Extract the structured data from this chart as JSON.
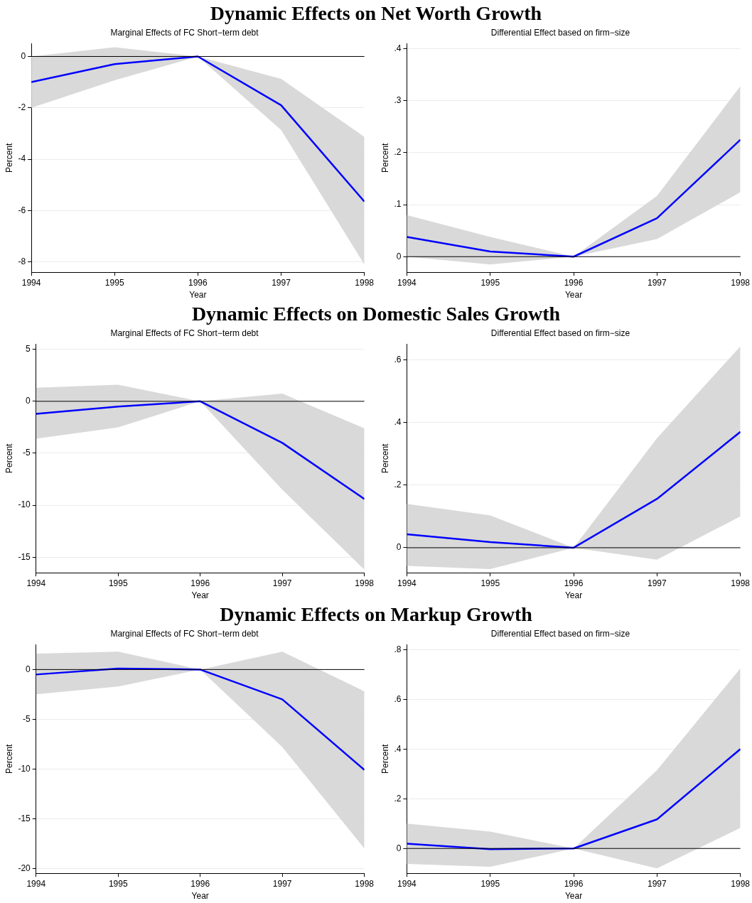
{
  "chart_data": [
    {
      "type": "line",
      "title": "Dynamic Effects on Net Worth Growth",
      "subtitle": "Marginal Effects of FC Short−term debt",
      "xlabel": "Year",
      "ylabel": "Percent",
      "x": [
        1994,
        1995,
        1996,
        1997,
        1998
      ],
      "xlim": [
        1994,
        1998
      ],
      "xticks": [
        1994,
        1995,
        1996,
        1997,
        1998
      ],
      "ylim": [
        -8.4,
        0.5
      ],
      "yticks": [
        0,
        -2,
        -4,
        -6,
        -8
      ],
      "grid": "y",
      "marker": "none",
      "line_style": "solid",
      "series": [
        {
          "color": "#0000ff",
          "values": [
            -1.0,
            -0.3,
            0,
            -1.9,
            -5.65
          ],
          "lower": [
            -2.0,
            -0.93,
            0,
            -2.86,
            -8.1
          ],
          "upper": [
            0.0,
            0.36,
            0,
            -0.87,
            -3.13
          ]
        }
      ],
      "ref_lines": [
        {
          "axis": "y",
          "value": 0,
          "color": "#000000"
        }
      ]
    },
    {
      "type": "line",
      "subtitle": "Differential Effect based on firm−size",
      "xlabel": "Year",
      "ylabel": "Percent",
      "x": [
        1994,
        1995,
        1996,
        1997,
        1998
      ],
      "xlim": [
        1994,
        1998
      ],
      "xticks": [
        1994,
        1995,
        1996,
        1997,
        1998
      ],
      "ylim": [
        -0.03,
        0.41
      ],
      "yticks": [
        0,
        {
          "value": 0.1,
          "label": ".1"
        },
        {
          "value": 0.2,
          "label": ".2"
        },
        {
          "value": 0.3,
          "label": ".3"
        },
        {
          "value": 0.4,
          "label": ".4"
        }
      ],
      "grid": "y",
      "marker": "none",
      "line_style": "solid",
      "series": [
        {
          "color": "#0000ff",
          "values": [
            0.038,
            0.01,
            0,
            0.074,
            0.225
          ],
          "lower": [
            0.0,
            -0.015,
            0,
            0.034,
            0.124
          ],
          "upper": [
            0.08,
            0.038,
            0,
            0.117,
            0.328
          ]
        }
      ],
      "ref_lines": [
        {
          "axis": "y",
          "value": 0,
          "color": "#000000"
        }
      ]
    },
    {
      "type": "line",
      "title": "Dynamic Effects on Domestic Sales Growth",
      "subtitle": "Marginal Effects of FC Short−term debt",
      "xlabel": "Year",
      "ylabel": "Percent",
      "x": [
        1994,
        1995,
        1996,
        1997,
        1998
      ],
      "xlim": [
        1994,
        1998
      ],
      "xticks": [
        1994,
        1995,
        1996,
        1997,
        1998
      ],
      "ylim": [
        -16.5,
        5.5
      ],
      "yticks": [
        5,
        0,
        -5,
        -10,
        -15
      ],
      "grid": "y",
      "marker": "none",
      "line_style": "solid",
      "series": [
        {
          "color": "#0000ff",
          "values": [
            -1.2,
            -0.5,
            0,
            -4.0,
            -9.4
          ],
          "lower": [
            -3.6,
            -2.5,
            0,
            -8.5,
            -16.2
          ],
          "upper": [
            1.3,
            1.6,
            0,
            0.75,
            -2.6
          ]
        }
      ],
      "ref_lines": [
        {
          "axis": "y",
          "value": 0,
          "color": "#000000"
        }
      ]
    },
    {
      "type": "line",
      "subtitle": "Differential Effect based on firm−size",
      "xlabel": "Year",
      "ylabel": "Percent",
      "x": [
        1994,
        1995,
        1996,
        1997,
        1998
      ],
      "xlim": [
        1994,
        1998
      ],
      "xticks": [
        1994,
        1995,
        1996,
        1997,
        1998
      ],
      "ylim": [
        -0.08,
        0.65
      ],
      "yticks": [
        0,
        {
          "value": 0.2,
          "label": ".2"
        },
        {
          "value": 0.4,
          "label": ".4"
        },
        {
          "value": 0.6,
          "label": ".6"
        }
      ],
      "grid": "y",
      "marker": "none",
      "line_style": "solid",
      "series": [
        {
          "color": "#0000ff",
          "values": [
            0.043,
            0.018,
            0,
            0.156,
            0.37
          ],
          "lower": [
            -0.058,
            -0.068,
            0,
            -0.038,
            0.1
          ],
          "upper": [
            0.14,
            0.103,
            0,
            0.35,
            0.643
          ]
        }
      ],
      "ref_lines": [
        {
          "axis": "y",
          "value": 0,
          "color": "#000000"
        }
      ]
    },
    {
      "type": "line",
      "title": "Dynamic Effects on Markup Growth",
      "subtitle": "Marginal Effects of FC Short−term debt",
      "xlabel": "Year",
      "ylabel": "Percent",
      "x": [
        1994,
        1995,
        1996,
        1997,
        1998
      ],
      "xlim": [
        1994,
        1998
      ],
      "xticks": [
        1994,
        1995,
        1996,
        1997,
        1998
      ],
      "ylim": [
        -20.5,
        2.5
      ],
      "yticks": [
        0,
        -5,
        -10,
        -15,
        -20
      ],
      "grid": "y",
      "marker": "none",
      "line_style": "solid",
      "series": [
        {
          "color": "#0000ff",
          "values": [
            -0.5,
            0.1,
            0,
            -3.0,
            -10.1
          ],
          "lower": [
            -2.5,
            -1.7,
            0,
            -7.8,
            -18.0
          ],
          "upper": [
            1.6,
            1.8,
            0,
            1.8,
            -2.2
          ]
        }
      ],
      "ref_lines": [
        {
          "axis": "y",
          "value": 0,
          "color": "#000000"
        }
      ]
    },
    {
      "type": "line",
      "subtitle": "Differential Effect based on firm−size",
      "xlabel": "Year",
      "ylabel": "Percent",
      "x": [
        1994,
        1995,
        1996,
        1997,
        1998
      ],
      "xlim": [
        1994,
        1998
      ],
      "xticks": [
        1994,
        1995,
        1996,
        1997,
        1998
      ],
      "ylim": [
        -0.1,
        0.82
      ],
      "yticks": [
        0,
        {
          "value": 0.2,
          "label": ".2"
        },
        {
          "value": 0.4,
          "label": ".4"
        },
        {
          "value": 0.6,
          "label": ".6"
        },
        {
          "value": 0.8,
          "label": ".8"
        }
      ],
      "grid": "y",
      "marker": "none",
      "line_style": "solid",
      "series": [
        {
          "color": "#0000ff",
          "values": [
            0.019,
            -0.003,
            0,
            0.117,
            0.4
          ],
          "lower": [
            -0.062,
            -0.074,
            0,
            -0.08,
            0.083
          ],
          "upper": [
            0.1,
            0.068,
            0,
            0.315,
            0.725
          ]
        }
      ],
      "ref_lines": [
        {
          "axis": "y",
          "value": 0,
          "color": "#000000"
        }
      ]
    }
  ]
}
